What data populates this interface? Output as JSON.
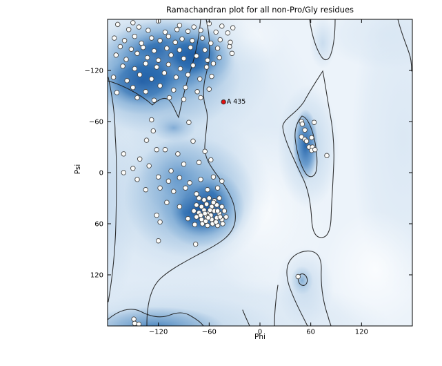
{
  "chart_data": {
    "type": "scatter",
    "subtype": "ramachandran-density",
    "title": "Ramachandran plot for all non-Pro/Gly residues",
    "xlabel": "Phi",
    "ylabel": "Psi",
    "xlim": [
      -180,
      180
    ],
    "ylim": [
      -180,
      180
    ],
    "grid": false,
    "ticks": [
      -120,
      -60,
      0,
      60,
      120
    ],
    "x_tick_labels": [
      "−120",
      "−60",
      "0",
      "60",
      "120"
    ],
    "y_tick_labels": [
      "120",
      "60",
      "0",
      "−60",
      "−120"
    ],
    "colors": {
      "density_low": "#ecf3fa",
      "density_high": "#13529e",
      "point_fill": "#fcfcfa",
      "point_edge": "#474747",
      "outlier": "#e01010",
      "contour": "#1c1c1c"
    },
    "outlier": {
      "label": "A 435",
      "phi": -43,
      "psi": 83
    },
    "points": [
      [
        -168,
        174
      ],
      [
        -150,
        176
      ],
      [
        -143,
        171
      ],
      [
        -120,
        178
      ],
      [
        -95,
        173
      ],
      [
        -78,
        171
      ],
      [
        -60,
        175
      ],
      [
        -45,
        172
      ],
      [
        -32,
        170
      ],
      [
        -155,
        168
      ],
      [
        -132,
        167
      ],
      [
        -112,
        165
      ],
      [
        -98,
        168
      ],
      [
        -85,
        166
      ],
      [
        -70,
        167
      ],
      [
        -52,
        165
      ],
      [
        -38,
        164
      ],
      [
        -172,
        158
      ],
      [
        -160,
        155
      ],
      [
        -148,
        160
      ],
      [
        -140,
        152
      ],
      [
        -128,
        158
      ],
      [
        -118,
        155
      ],
      [
        -108,
        160
      ],
      [
        -100,
        153
      ],
      [
        -92,
        157
      ],
      [
        -80,
        155
      ],
      [
        -68,
        158
      ],
      [
        -58,
        152
      ],
      [
        -47,
        156
      ],
      [
        -35,
        153
      ],
      [
        -165,
        148
      ],
      [
        -152,
        145
      ],
      [
        -138,
        147
      ],
      [
        -125,
        143
      ],
      [
        -110,
        146
      ],
      [
        -95,
        144
      ],
      [
        -82,
        147
      ],
      [
        -65,
        144
      ],
      [
        -50,
        146
      ],
      [
        -36,
        148
      ],
      [
        -170,
        138
      ],
      [
        -158,
        133
      ],
      [
        -145,
        140
      ],
      [
        -133,
        135
      ],
      [
        -120,
        132
      ],
      [
        -105,
        138
      ],
      [
        -90,
        134
      ],
      [
        -75,
        137
      ],
      [
        -62,
        132
      ],
      [
        -48,
        135
      ],
      [
        -33,
        140
      ],
      [
        -162,
        125
      ],
      [
        -148,
        122
      ],
      [
        -135,
        128
      ],
      [
        -122,
        124
      ],
      [
        -108,
        127
      ],
      [
        -94,
        122
      ],
      [
        -79,
        126
      ],
      [
        -63,
        124
      ],
      [
        -55,
        128
      ],
      [
        -173,
        112
      ],
      [
        -157,
        108
      ],
      [
        -142,
        115
      ],
      [
        -128,
        110
      ],
      [
        -113,
        117
      ],
      [
        -99,
        112
      ],
      [
        -85,
        115
      ],
      [
        -71,
        110
      ],
      [
        -57,
        113
      ],
      [
        -150,
        100
      ],
      [
        -135,
        95
      ],
      [
        -118,
        102
      ],
      [
        -102,
        97
      ],
      [
        -88,
        100
      ],
      [
        -74,
        95
      ],
      [
        -60,
        98
      ],
      [
        -169,
        94
      ],
      [
        -145,
        88
      ],
      [
        -125,
        85
      ],
      [
        -107,
        88
      ],
      [
        -90,
        86
      ],
      [
        -70,
        88
      ],
      [
        -128,
        62
      ],
      [
        -84,
        59
      ],
      [
        -126,
        49
      ],
      [
        -134,
        38
      ],
      [
        -79,
        37
      ],
      [
        -122,
        27
      ],
      [
        -112,
        27
      ],
      [
        -142,
        16
      ],
      [
        -97,
        22
      ],
      [
        -65,
        25
      ],
      [
        -150,
        5
      ],
      [
        -131,
        8
      ],
      [
        -90,
        10
      ],
      [
        -72,
        12
      ],
      [
        -58,
        15
      ],
      [
        -105,
        2
      ],
      [
        -161,
        22
      ],
      [
        -161,
        0
      ],
      [
        -145,
        -8
      ],
      [
        -120,
        -5
      ],
      [
        -108,
        -10
      ],
      [
        -95,
        -6
      ],
      [
        -83,
        -12
      ],
      [
        -70,
        -8
      ],
      [
        -55,
        -5
      ],
      [
        -135,
        -20
      ],
      [
        -118,
        -18
      ],
      [
        -102,
        -22
      ],
      [
        -88,
        -18
      ],
      [
        -75,
        -25
      ],
      [
        -62,
        -20
      ],
      [
        -50,
        -18
      ],
      [
        -45,
        -10
      ],
      [
        -72,
        -30
      ],
      [
        -66,
        -32
      ],
      [
        -60,
        -30
      ],
      [
        -54,
        -33
      ],
      [
        -48,
        -30
      ],
      [
        -75,
        -38
      ],
      [
        -69,
        -40
      ],
      [
        -63,
        -37
      ],
      [
        -57,
        -40
      ],
      [
        -51,
        -38
      ],
      [
        -45,
        -40
      ],
      [
        -78,
        -45
      ],
      [
        -72,
        -47
      ],
      [
        -66,
        -44
      ],
      [
        -60,
        -47
      ],
      [
        -54,
        -45
      ],
      [
        -48,
        -48
      ],
      [
        -42,
        -45
      ],
      [
        -75,
        -52
      ],
      [
        -69,
        -55
      ],
      [
        -63,
        -52
      ],
      [
        -57,
        -55
      ],
      [
        -51,
        -53
      ],
      [
        -45,
        -55
      ],
      [
        -40,
        -52
      ],
      [
        -68,
        -60
      ],
      [
        -62,
        -62
      ],
      [
        -56,
        -60
      ],
      [
        -50,
        -62
      ],
      [
        -44,
        -60
      ],
      [
        -58,
        -50
      ],
      [
        -64,
        -57
      ],
      [
        -52,
        -58
      ],
      [
        -47,
        -52
      ],
      [
        -70,
        -50
      ],
      [
        -55,
        -35
      ],
      [
        -50,
        -45
      ],
      [
        -59,
        -44
      ],
      [
        -65,
        -48
      ],
      [
        -61,
        -53
      ],
      [
        -110,
        -35
      ],
      [
        -95,
        -40
      ],
      [
        -122,
        -50
      ],
      [
        -118,
        -58
      ],
      [
        -85,
        -54
      ],
      [
        -77,
        -61
      ],
      [
        -120,
        -80
      ],
      [
        -76,
        -84
      ],
      [
        49,
        60
      ],
      [
        50,
        57
      ],
      [
        64,
        59
      ],
      [
        53,
        50
      ],
      [
        49,
        42
      ],
      [
        53,
        39
      ],
      [
        55,
        37
      ],
      [
        61,
        41
      ],
      [
        58,
        30
      ],
      [
        62,
        30
      ],
      [
        61,
        26
      ],
      [
        65,
        27
      ],
      [
        79,
        20
      ],
      [
        45,
        -122
      ],
      [
        -149,
        -172
      ],
      [
        -148,
        -177
      ],
      [
        -143,
        -178
      ]
    ]
  }
}
